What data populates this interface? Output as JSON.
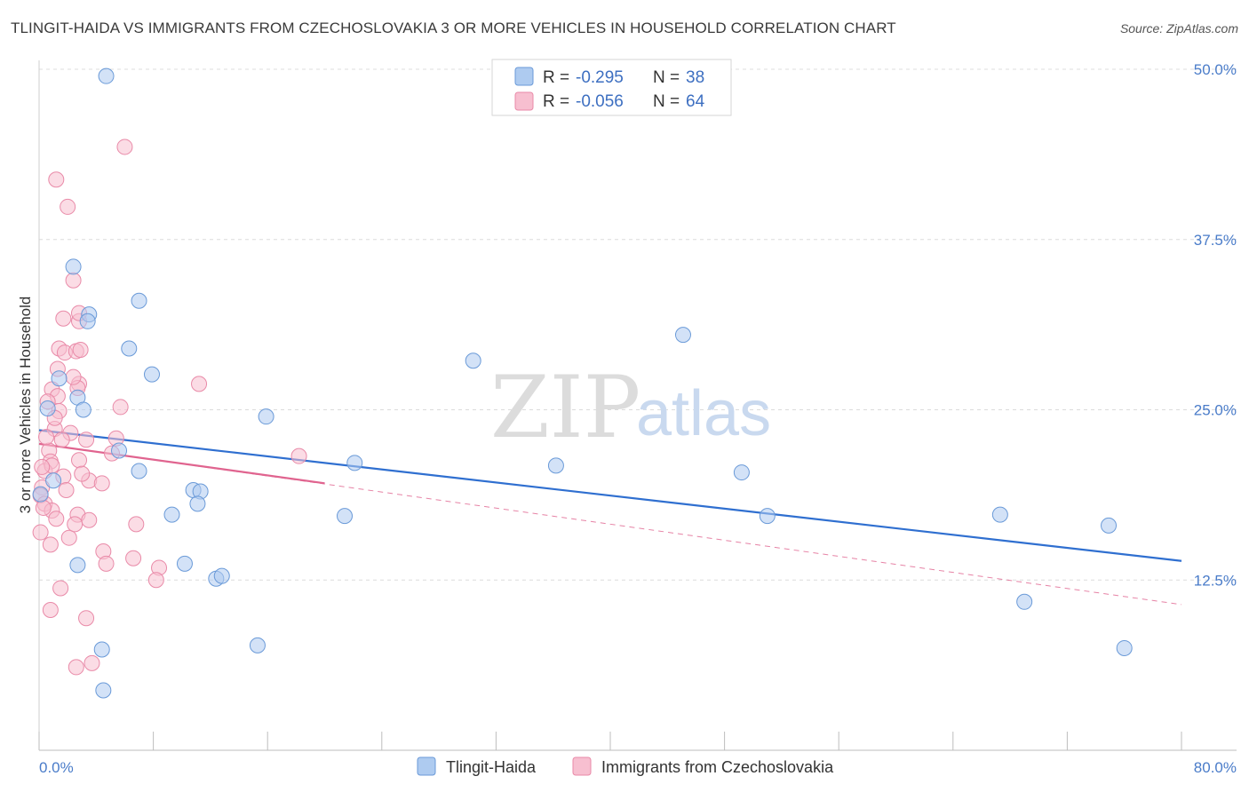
{
  "title": "TLINGIT-HAIDA VS IMMIGRANTS FROM CZECHOSLOVAKIA 3 OR MORE VEHICLES IN HOUSEHOLD CORRELATION CHART",
  "source": "Source: ZipAtlas.com",
  "watermark": {
    "zip": "ZIP",
    "atlas": "atlas"
  },
  "legend": {
    "r_label": "R =",
    "n_label": "N =",
    "rows": [
      {
        "r": "-0.295",
        "n": "38"
      },
      {
        "r": "-0.056",
        "n": "64"
      }
    ]
  },
  "colors": {
    "blue_fill": "#aecbf0",
    "blue_stroke": "#6a9ad8",
    "blue_line": "#2f6fd0",
    "pink_fill": "#f7bfd0",
    "pink_stroke": "#e98aa8",
    "pink_line": "#e0648f"
  },
  "chart_data": {
    "type": "scatter",
    "title": "TLINGIT-HAIDA VS IMMIGRANTS FROM CZECHOSLOVAKIA 3 OR MORE VEHICLES IN HOUSEHOLD CORRELATION CHART",
    "xlabel": "",
    "ylabel": "3 or more Vehicles in Household",
    "xlim": [
      0,
      80
    ],
    "ylim": [
      0,
      50
    ],
    "x_tick_labels": [
      "0.0%",
      "80.0%"
    ],
    "y_ticks": [
      12.5,
      25.0,
      37.5,
      50.0
    ],
    "y_tick_labels": [
      "12.5%",
      "25.0%",
      "37.5%",
      "50.0%"
    ],
    "legend_position": "bottom",
    "series": [
      {
        "name": "Tlingit-Haida",
        "trend": {
          "x": [
            0,
            80
          ],
          "y": [
            23.5,
            13.9
          ]
        },
        "points": [
          [
            4.7,
            49.5
          ],
          [
            2.4,
            35.5
          ],
          [
            7.0,
            33.0
          ],
          [
            3.5,
            32.0
          ],
          [
            3.4,
            31.5
          ],
          [
            0.6,
            25.1
          ],
          [
            2.7,
            25.9
          ],
          [
            3.1,
            25.0
          ],
          [
            6.3,
            29.5
          ],
          [
            7.9,
            27.6
          ],
          [
            1.4,
            27.3
          ],
          [
            15.9,
            24.5
          ],
          [
            5.6,
            22.0
          ],
          [
            7.0,
            20.5
          ],
          [
            10.8,
            19.1
          ],
          [
            11.3,
            19.0
          ],
          [
            11.1,
            18.1
          ],
          [
            9.3,
            17.3
          ],
          [
            0.1,
            18.8
          ],
          [
            1.0,
            19.8
          ],
          [
            2.7,
            13.6
          ],
          [
            10.2,
            13.7
          ],
          [
            12.4,
            12.6
          ],
          [
            12.8,
            12.8
          ],
          [
            15.3,
            7.7
          ],
          [
            4.5,
            4.4
          ],
          [
            22.1,
            21.1
          ],
          [
            21.4,
            17.2
          ],
          [
            30.4,
            28.6
          ],
          [
            36.2,
            20.9
          ],
          [
            45.1,
            30.5
          ],
          [
            49.2,
            20.4
          ],
          [
            51.0,
            17.2
          ],
          [
            67.3,
            17.3
          ],
          [
            69.0,
            10.9
          ],
          [
            74.9,
            16.5
          ],
          [
            76.0,
            7.5
          ],
          [
            4.4,
            7.4
          ]
        ]
      },
      {
        "name": "Immigrants from Czechoslovakia",
        "trend": {
          "x": [
            0,
            20
          ],
          "y": [
            22.5,
            19.6
          ]
        },
        "trend_extended": {
          "x": [
            0,
            80
          ],
          "y": [
            22.5,
            10.7
          ]
        },
        "points": [
          [
            6.0,
            44.3
          ],
          [
            1.2,
            41.9
          ],
          [
            2.0,
            39.9
          ],
          [
            2.4,
            34.5
          ],
          [
            1.7,
            31.7
          ],
          [
            2.8,
            31.5
          ],
          [
            2.8,
            32.1
          ],
          [
            1.4,
            29.5
          ],
          [
            1.8,
            29.2
          ],
          [
            2.6,
            29.3
          ],
          [
            2.9,
            29.4
          ],
          [
            1.3,
            28.0
          ],
          [
            2.8,
            26.9
          ],
          [
            0.9,
            26.5
          ],
          [
            2.7,
            26.6
          ],
          [
            11.2,
            26.9
          ],
          [
            1.3,
            26.0
          ],
          [
            1.4,
            24.9
          ],
          [
            5.7,
            25.2
          ],
          [
            1.1,
            23.6
          ],
          [
            2.2,
            23.3
          ],
          [
            3.3,
            22.8
          ],
          [
            5.4,
            22.9
          ],
          [
            0.7,
            22.0
          ],
          [
            0.8,
            21.2
          ],
          [
            2.8,
            21.3
          ],
          [
            18.2,
            21.6
          ],
          [
            0.4,
            20.5
          ],
          [
            0.9,
            20.9
          ],
          [
            1.7,
            20.1
          ],
          [
            3.5,
            19.8
          ],
          [
            4.4,
            19.6
          ],
          [
            0.2,
            19.3
          ],
          [
            1.9,
            19.1
          ],
          [
            0.1,
            18.7
          ],
          [
            0.4,
            18.1
          ],
          [
            0.9,
            17.6
          ],
          [
            1.2,
            17.0
          ],
          [
            2.7,
            17.3
          ],
          [
            3.5,
            16.9
          ],
          [
            6.8,
            16.6
          ],
          [
            2.1,
            15.6
          ],
          [
            2.5,
            16.6
          ],
          [
            0.8,
            15.1
          ],
          [
            4.5,
            14.6
          ],
          [
            4.7,
            13.7
          ],
          [
            6.6,
            14.1
          ],
          [
            8.4,
            13.4
          ],
          [
            8.2,
            12.5
          ],
          [
            1.5,
            11.9
          ],
          [
            0.8,
            10.3
          ],
          [
            3.3,
            9.7
          ],
          [
            3.7,
            6.4
          ],
          [
            2.6,
            6.1
          ],
          [
            0.3,
            17.8
          ],
          [
            0.1,
            16.0
          ],
          [
            0.2,
            20.8
          ],
          [
            1.1,
            24.4
          ],
          [
            1.6,
            22.8
          ],
          [
            2.4,
            27.4
          ],
          [
            3.0,
            20.3
          ],
          [
            0.6,
            25.6
          ],
          [
            5.1,
            21.8
          ],
          [
            0.5,
            23.0
          ]
        ]
      }
    ]
  },
  "bottom_legend": [
    {
      "label": "Tlingit-Haida"
    },
    {
      "label": "Immigrants from Czechoslovakia"
    }
  ]
}
